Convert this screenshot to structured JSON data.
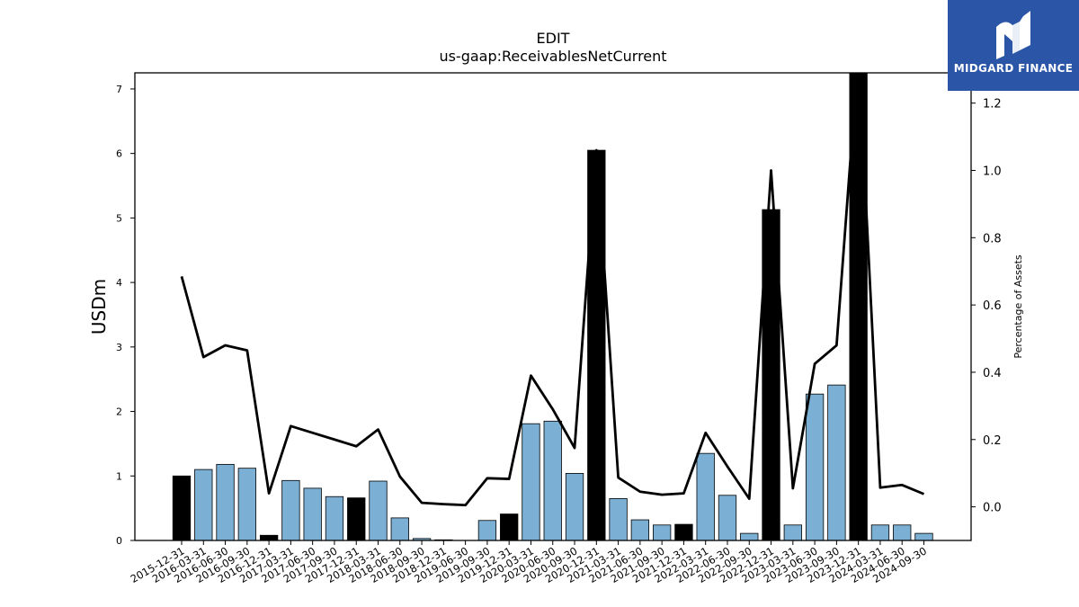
{
  "logo": {
    "text": "MIDGARD FINANCE"
  },
  "colors": {
    "bar_normal": "#7bafd4",
    "bar_highlight": "#000000",
    "line": "#000000",
    "logo_bg": "#2b56a8"
  },
  "chart_data": {
    "type": "bar",
    "title": "EDIT",
    "subtitle": "us-gaap:ReceivablesNetCurrent",
    "ylabel": "USDm",
    "y2label": "Percentage of Assets",
    "ylim": [
      0,
      7.25
    ],
    "y2lim": [
      -0.1,
      1.29
    ],
    "yticks": [
      "0",
      "1",
      "2",
      "3",
      "4",
      "5",
      "6",
      "7"
    ],
    "y2ticks": [
      "0.0",
      "0.2",
      "0.4",
      "0.6",
      "0.8",
      "1.0",
      "1.2"
    ],
    "grid": false,
    "categories": [
      "2015-12-31",
      "2016-03-31",
      "2016-06-30",
      "2016-09-30",
      "2016-12-31",
      "2017-03-31",
      "2017-06-30",
      "2017-09-30",
      "2017-12-31",
      "2018-03-31",
      "2018-06-30",
      "2018-09-30",
      "2018-12-31",
      "2019-06-30",
      "2019-09-30",
      "2019-12-31",
      "2020-03-31",
      "2020-06-30",
      "2020-09-30",
      "2020-12-31",
      "2021-03-31",
      "2021-06-30",
      "2021-09-30",
      "2021-12-31",
      "2022-03-31",
      "2022-06-30",
      "2022-09-30",
      "2022-12-31",
      "2023-03-31",
      "2023-06-30",
      "2023-09-30",
      "2023-12-31",
      "2024-03-31",
      "2024-06-30",
      "2024-09-30"
    ],
    "series": [
      {
        "kind": "bar",
        "values": [
          1.0,
          1.1,
          1.18,
          1.12,
          0.08,
          0.93,
          0.81,
          0.68,
          0.66,
          0.92,
          0.35,
          0.03,
          0.01,
          0.0,
          0.31,
          0.41,
          1.81,
          1.85,
          1.04,
          6.05,
          0.65,
          0.32,
          0.24,
          0.25,
          1.35,
          0.7,
          0.11,
          5.13,
          0.24,
          2.27,
          2.41,
          7.3,
          0.24,
          0.24,
          0.11
        ],
        "highlight": [
          true,
          false,
          false,
          false,
          true,
          false,
          false,
          false,
          true,
          false,
          false,
          false,
          false,
          false,
          false,
          true,
          false,
          false,
          false,
          true,
          false,
          false,
          false,
          true,
          false,
          false,
          false,
          true,
          false,
          false,
          false,
          true,
          false,
          false,
          false
        ]
      },
      {
        "kind": "line",
        "axis": "y2",
        "values": [
          0.685,
          0.445,
          0.48,
          0.465,
          0.04,
          0.24,
          0.22,
          0.2,
          0.18,
          0.23,
          0.09,
          0.012,
          0.008,
          0.005,
          0.085,
          0.083,
          0.39,
          0.29,
          0.175,
          1.06,
          0.087,
          0.045,
          0.036,
          0.04,
          0.22,
          0.12,
          0.024,
          1.0,
          0.055,
          0.425,
          0.48,
          1.35,
          0.057,
          0.065,
          0.038
        ]
      }
    ]
  }
}
